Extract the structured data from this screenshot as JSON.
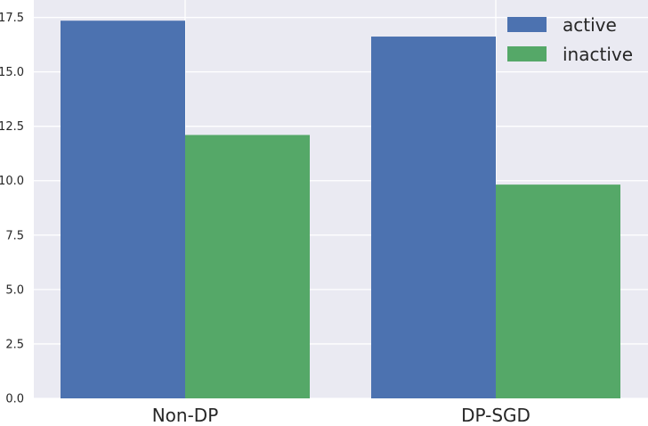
{
  "chart_data": {
    "type": "bar",
    "categories": [
      "Non-DP",
      "DP-SGD"
    ],
    "series": [
      {
        "name": "active",
        "values": [
          17.35,
          16.62
        ]
      },
      {
        "name": "inactive",
        "values": [
          12.1,
          9.82
        ]
      }
    ],
    "colors": [
      "#4c72b0",
      "#55a868"
    ],
    "background": "#eaeaf2",
    "grid": true,
    "ylim": [
      0,
      18.3
    ],
    "yticks": [
      "0.0",
      "2.5",
      "5.0",
      "7.5",
      "10.0",
      "12.5",
      "15.0",
      "17.5"
    ],
    "title": "",
    "xlabel": "",
    "ylabel": "",
    "legend_position": "top-right"
  }
}
